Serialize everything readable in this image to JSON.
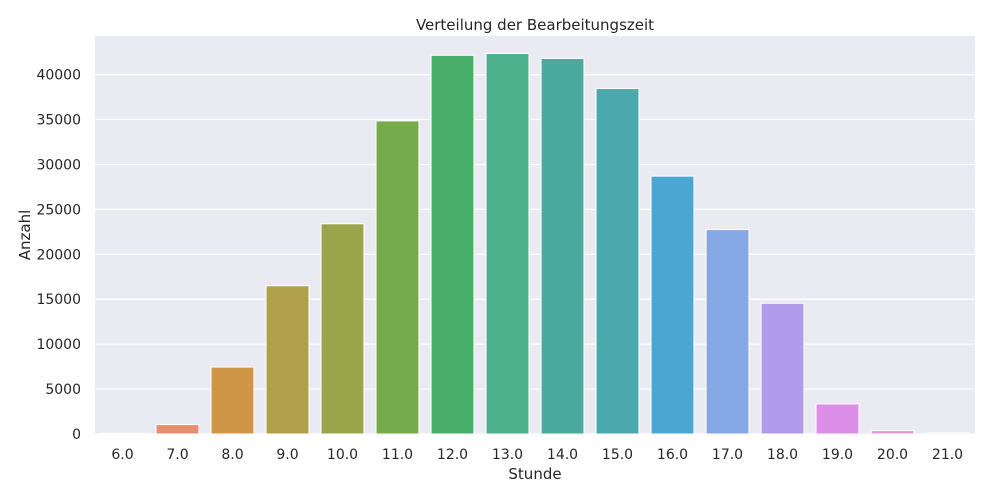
{
  "chart_data": {
    "type": "bar",
    "title": "Verteilung der Bearbeitungszeit",
    "xlabel": "Stunde",
    "ylabel": "Anzahl",
    "categories": [
      "6.0",
      "7.0",
      "8.0",
      "9.0",
      "10.0",
      "11.0",
      "12.0",
      "13.0",
      "14.0",
      "15.0",
      "16.0",
      "17.0",
      "18.0",
      "19.0",
      "20.0",
      "21.0"
    ],
    "values": [
      80,
      1050,
      7450,
      16500,
      23400,
      34850,
      42150,
      42350,
      41800,
      38450,
      28700,
      22750,
      14550,
      3350,
      380,
      120
    ],
    "colors": [
      "#ea8d89",
      "#e58e70",
      "#cf9648",
      "#b0a04a",
      "#9aa54b",
      "#76ab4b",
      "#4aae6b",
      "#4cb08d",
      "#4aaa9e",
      "#4ba9ae",
      "#4ba6d1",
      "#86a9e6",
      "#b19ceb",
      "#db8ee6",
      "#e597d3",
      "#ea95bd"
    ],
    "yticks": [
      "0",
      "5000",
      "10000",
      "15000",
      "20000",
      "25000",
      "30000",
      "35000",
      "40000"
    ],
    "ylim": [
      0,
      44300
    ],
    "grid": true,
    "background": "#eaeaf2",
    "grid_color": "#ffffff"
  }
}
